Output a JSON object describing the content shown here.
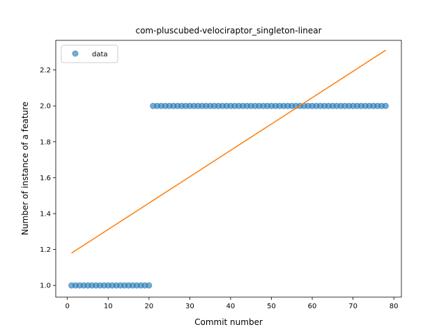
{
  "chart_data": {
    "type": "scatter",
    "title": "com-pluscubed-velociraptor_singleton-linear",
    "xlabel": "Commit number",
    "ylabel": "Number of instance of a feature",
    "xlim": [
      -2.85,
      81.85
    ],
    "ylim": [
      0.935,
      2.365
    ],
    "xticks": [
      0,
      10,
      20,
      30,
      40,
      50,
      60,
      70,
      80
    ],
    "yticks": [
      1.0,
      1.2,
      1.4,
      1.6,
      1.8,
      2.0,
      2.2
    ],
    "ytick_labels": [
      "1.0",
      "1.2",
      "1.4",
      "1.6",
      "1.8",
      "2.0",
      "2.2"
    ],
    "grid": false,
    "legend": {
      "position": "top-left",
      "entries": [
        "data"
      ]
    },
    "colors": {
      "data": "#1f77b4",
      "fit": "#ff7f0e"
    },
    "series": [
      {
        "name": "data",
        "kind": "scatter",
        "segments": [
          {
            "x_start": 1,
            "x_end": 20,
            "y": 1.0
          },
          {
            "x_start": 21,
            "x_end": 78,
            "y": 2.0
          }
        ]
      },
      {
        "kind": "line",
        "x": [
          1,
          78
        ],
        "y": [
          1.18,
          2.31
        ]
      }
    ]
  }
}
